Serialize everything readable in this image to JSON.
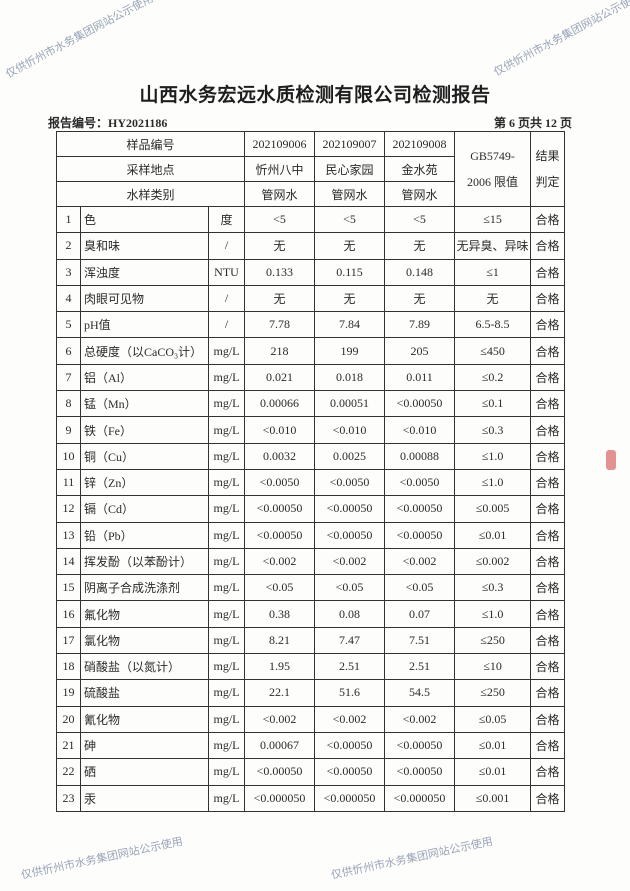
{
  "title": "山西水务宏远水质检测有限公司检测报告",
  "report_no": "报告编号：HY2021186",
  "page_info": "第 6 页共 12 页",
  "watermark": "仅供忻州市水务集团网站公示使用",
  "header": {
    "sample_no_label": "样品编号",
    "location_label": "采样地点",
    "type_label": "水样类别",
    "limit_label": "GB5749-2006 限值",
    "result_label": "结果判定",
    "samples": [
      {
        "no": "202109006",
        "location": "忻州八中",
        "type": "管网水"
      },
      {
        "no": "202109007",
        "location": "民心家园",
        "type": "管网水"
      },
      {
        "no": "202109008",
        "location": "金水苑",
        "type": "管网水"
      }
    ]
  },
  "rows": [
    {
      "n": "1",
      "item": "色",
      "unit": "度",
      "v": [
        "<5",
        "<5",
        "<5"
      ],
      "limit": "≤15",
      "result": "合格"
    },
    {
      "n": "2",
      "item": "臭和味",
      "unit": "/",
      "v": [
        "无",
        "无",
        "无"
      ],
      "limit": "无异臭、异味",
      "result": "合格"
    },
    {
      "n": "3",
      "item": "浑浊度",
      "unit": "NTU",
      "v": [
        "0.133",
        "0.115",
        "0.148"
      ],
      "limit": "≤1",
      "result": "合格"
    },
    {
      "n": "4",
      "item": "肉眼可见物",
      "unit": "/",
      "v": [
        "无",
        "无",
        "无"
      ],
      "limit": "无",
      "result": "合格"
    },
    {
      "n": "5",
      "item": "pH值",
      "unit": "/",
      "v": [
        "7.78",
        "7.84",
        "7.89"
      ],
      "limit": "6.5-8.5",
      "result": "合格"
    },
    {
      "n": "6",
      "item": "总硬度（以CaCO₃计）",
      "unit": "mg/L",
      "v": [
        "218",
        "199",
        "205"
      ],
      "limit": "≤450",
      "result": "合格"
    },
    {
      "n": "7",
      "item": "铝（Al）",
      "unit": "mg/L",
      "v": [
        "0.021",
        "0.018",
        "0.011"
      ],
      "limit": "≤0.2",
      "result": "合格"
    },
    {
      "n": "8",
      "item": "锰（Mn）",
      "unit": "mg/L",
      "v": [
        "0.00066",
        "0.00051",
        "<0.00050"
      ],
      "limit": "≤0.1",
      "result": "合格"
    },
    {
      "n": "9",
      "item": "铁（Fe）",
      "unit": "mg/L",
      "v": [
        "<0.010",
        "<0.010",
        "<0.010"
      ],
      "limit": "≤0.3",
      "result": "合格"
    },
    {
      "n": "10",
      "item": "铜（Cu）",
      "unit": "mg/L",
      "v": [
        "0.0032",
        "0.0025",
        "0.00088"
      ],
      "limit": "≤1.0",
      "result": "合格"
    },
    {
      "n": "11",
      "item": "锌（Zn）",
      "unit": "mg/L",
      "v": [
        "<0.0050",
        "<0.0050",
        "<0.0050"
      ],
      "limit": "≤1.0",
      "result": "合格"
    },
    {
      "n": "12",
      "item": "镉（Cd）",
      "unit": "mg/L",
      "v": [
        "<0.00050",
        "<0.00050",
        "<0.00050"
      ],
      "limit": "≤0.005",
      "result": "合格"
    },
    {
      "n": "13",
      "item": "铅（Pb）",
      "unit": "mg/L",
      "v": [
        "<0.00050",
        "<0.00050",
        "<0.00050"
      ],
      "limit": "≤0.01",
      "result": "合格"
    },
    {
      "n": "14",
      "item": "挥发酚（以苯酚计）",
      "unit": "mg/L",
      "v": [
        "<0.002",
        "<0.002",
        "<0.002"
      ],
      "limit": "≤0.002",
      "result": "合格"
    },
    {
      "n": "15",
      "item": "阴离子合成洗涤剂",
      "unit": "mg/L",
      "v": [
        "<0.05",
        "<0.05",
        "<0.05"
      ],
      "limit": "≤0.3",
      "result": "合格"
    },
    {
      "n": "16",
      "item": "氟化物",
      "unit": "mg/L",
      "v": [
        "0.38",
        "0.08",
        "0.07"
      ],
      "limit": "≤1.0",
      "result": "合格"
    },
    {
      "n": "17",
      "item": "氯化物",
      "unit": "mg/L",
      "v": [
        "8.21",
        "7.47",
        "7.51"
      ],
      "limit": "≤250",
      "result": "合格"
    },
    {
      "n": "18",
      "item": "硝酸盐（以氮计）",
      "unit": "mg/L",
      "v": [
        "1.95",
        "2.51",
        "2.51"
      ],
      "limit": "≤10",
      "result": "合格"
    },
    {
      "n": "19",
      "item": "硫酸盐",
      "unit": "mg/L",
      "v": [
        "22.1",
        "51.6",
        "54.5"
      ],
      "limit": "≤250",
      "result": "合格"
    },
    {
      "n": "20",
      "item": "氰化物",
      "unit": "mg/L",
      "v": [
        "<0.002",
        "<0.002",
        "<0.002"
      ],
      "limit": "≤0.05",
      "result": "合格"
    },
    {
      "n": "21",
      "item": "砷",
      "unit": "mg/L",
      "v": [
        "0.00067",
        "<0.00050",
        "<0.00050"
      ],
      "limit": "≤0.01",
      "result": "合格"
    },
    {
      "n": "22",
      "item": "硒",
      "unit": "mg/L",
      "v": [
        "<0.00050",
        "<0.00050",
        "<0.00050"
      ],
      "limit": "≤0.01",
      "result": "合格"
    },
    {
      "n": "23",
      "item": "汞",
      "unit": "mg/L",
      "v": [
        "<0.000050",
        "<0.000050",
        "<0.000050"
      ],
      "limit": "≤0.001",
      "result": "合格"
    }
  ]
}
